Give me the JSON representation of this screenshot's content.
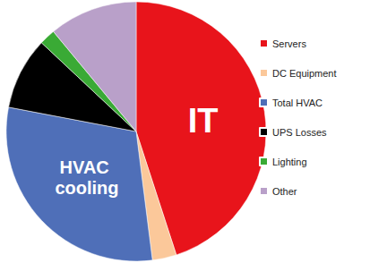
{
  "chart_data": {
    "type": "pie",
    "categories": [
      "Servers",
      "DC Equipment",
      "Total HVAC",
      "UPS Losses",
      "Lighting",
      "Other"
    ],
    "values": [
      45,
      3,
      30,
      9,
      2,
      11
    ],
    "colors": [
      "#e8141b",
      "#fbc89a",
      "#4f6fb8",
      "#000000",
      "#3aaa35",
      "#b9a0c9"
    ],
    "annotations": [
      {
        "text": "IT",
        "category": "Servers"
      },
      {
        "text": "HVAC cooling",
        "category": "Total HVAC"
      }
    ],
    "legend": "right",
    "data_labels": false
  }
}
